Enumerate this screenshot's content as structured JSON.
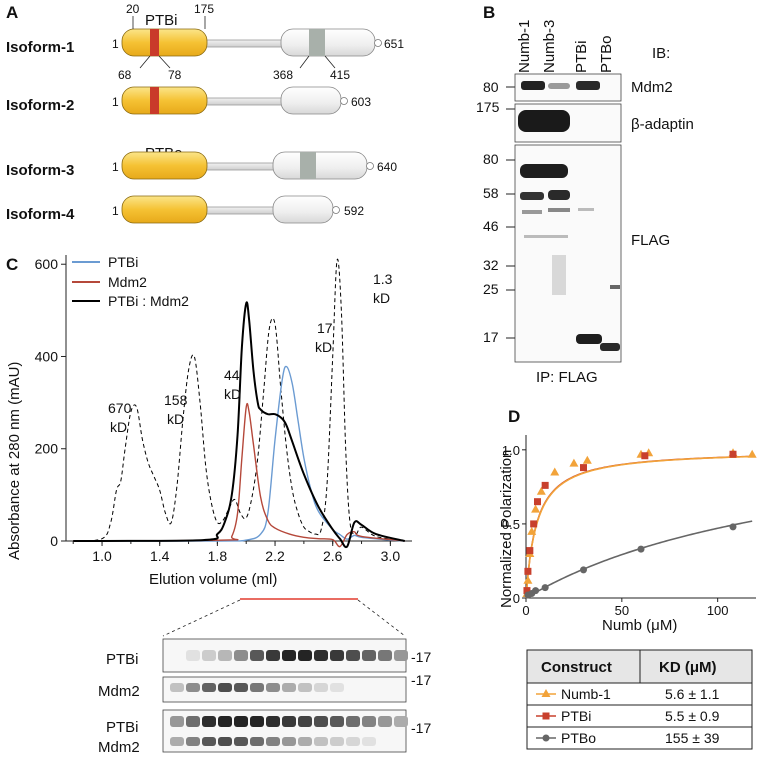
{
  "panels": {
    "a": "A",
    "b": "B",
    "c": "C",
    "d": "D"
  },
  "panel_a": {
    "domain_ptbi": "PTBi",
    "domain_ptbo": "PTBo",
    "isoforms": [
      {
        "name": "Isoform-1",
        "start": "1",
        "end": "651"
      },
      {
        "name": "Isoform-2",
        "start": "1",
        "end": "603"
      },
      {
        "name": "Isoform-3",
        "start": "1",
        "end": "640"
      },
      {
        "name": "Isoform-4",
        "start": "1",
        "end": "592"
      }
    ],
    "positions": {
      "p20": "20",
      "p175": "175",
      "p68": "68",
      "p78": "78",
      "p368": "368",
      "p415": "415"
    }
  },
  "panel_b": {
    "lanes": [
      "Numb-1",
      "Numb-3",
      "PTBi",
      "PTBo"
    ],
    "ib_label": "IB:",
    "blots": [
      {
        "label": "Mdm2",
        "markers": [
          "80"
        ]
      },
      {
        "label": "β-adaptin",
        "markers": [
          "175"
        ]
      },
      {
        "label": "FLAG",
        "markers": [
          "80",
          "58",
          "46",
          "32",
          "25",
          "17"
        ]
      }
    ],
    "ip_label": "IP: FLAG"
  },
  "chart_data": [
    {
      "type": "line",
      "xlabel": "Elution volume (ml)",
      "ylabel": "Absorbance at 280 nm (mAU)",
      "xlim": [
        0.75,
        3.15
      ],
      "ylim": [
        0,
        620
      ],
      "xticks": [
        "1.0",
        "1.4",
        "1.8",
        "2.2",
        "2.6",
        "3.0"
      ],
      "yticks": [
        "0",
        "200",
        "400",
        "600"
      ],
      "legend": [
        "PTBi",
        "Mdm2",
        "PTBi : Mdm2"
      ],
      "legend_position": "top-left",
      "series": [
        {
          "name": "PTBi",
          "color": "#6b9bd2",
          "x": [
            0.8,
            1.8,
            2.0,
            2.1,
            2.15,
            2.2,
            2.25,
            2.28,
            2.32,
            2.36,
            2.4,
            2.45,
            2.5,
            2.6,
            2.65,
            2.7,
            2.75,
            2.8,
            3.0,
            3.1
          ],
          "y": [
            0,
            0,
            2,
            15,
            60,
            220,
            350,
            378,
            340,
            260,
            180,
            110,
            65,
            25,
            14,
            4,
            12,
            8,
            2,
            0
          ]
        },
        {
          "name": "Mdm2",
          "color": "#b5483a",
          "x": [
            0.8,
            1.85,
            1.9,
            1.94,
            1.97,
            2.0,
            2.02,
            2.05,
            2.1,
            2.15,
            2.2,
            2.3,
            2.4,
            2.5,
            2.6,
            2.65,
            2.7,
            2.75,
            2.8,
            3.1
          ],
          "y": [
            0,
            2,
            10,
            60,
            180,
            290,
            280,
            210,
            95,
            45,
            28,
            15,
            8,
            5,
            3,
            -12,
            14,
            20,
            10,
            0
          ]
        },
        {
          "name": "PTBi : Mdm2",
          "color": "#000000",
          "x": [
            0.8,
            1.7,
            1.8,
            1.85,
            1.9,
            1.94,
            1.97,
            2.0,
            2.02,
            2.05,
            2.08,
            2.1,
            2.15,
            2.2,
            2.25,
            2.28,
            2.32,
            2.4,
            2.5,
            2.6,
            2.65,
            2.7,
            2.75,
            2.8,
            2.9,
            3.1
          ],
          "y": [
            0,
            2,
            15,
            40,
            100,
            230,
            420,
            515,
            480,
            370,
            300,
            285,
            275,
            275,
            265,
            250,
            215,
            145,
            75,
            25,
            5,
            -12,
            40,
            35,
            15,
            0
          ]
        },
        {
          "name": "",
          "color": "#000000",
          "dashed": true,
          "x": [
            0.8,
            1.0,
            1.06,
            1.1,
            1.13,
            1.16,
            1.2,
            1.24,
            1.28,
            1.32,
            1.36,
            1.4,
            1.44,
            1.48,
            1.52,
            1.56,
            1.6,
            1.64,
            1.68,
            1.72,
            1.76,
            1.8,
            1.84,
            1.88,
            1.92,
            1.96,
            2.0,
            2.04,
            2.08,
            2.12,
            2.16,
            2.2,
            2.24,
            2.28,
            2.32,
            2.36,
            2.4,
            2.44,
            2.48,
            2.52,
            2.56,
            2.6,
            2.63,
            2.66,
            2.69,
            2.72,
            2.76,
            2.8,
            2.9,
            3.1
          ],
          "y": [
            0,
            5,
            40,
            110,
            130,
            200,
            280,
            290,
            220,
            170,
            140,
            110,
            60,
            40,
            120,
            260,
            370,
            400,
            300,
            160,
            80,
            40,
            45,
            70,
            90,
            60,
            50,
            95,
            180,
            320,
            460,
            470,
            330,
            200,
            110,
            60,
            30,
            20,
            15,
            25,
            120,
            400,
            608,
            500,
            200,
            40,
            15,
            30,
            10,
            0
          ]
        }
      ],
      "annotations": [
        {
          "line1": "670",
          "line2": "kD"
        },
        {
          "line1": "158",
          "line2": "kD"
        },
        {
          "line1": "44",
          "line2": "kD"
        },
        {
          "line1": "17",
          "line2": "kD"
        },
        {
          "line1": "1.3",
          "line2": "kD"
        }
      ],
      "gel_labels": [
        "PTBi",
        "Mdm2",
        "PTBi",
        "Mdm2"
      ],
      "gel_marker": "-17"
    },
    {
      "type": "scatter",
      "xlabel": "Numb (μM)",
      "ylabel": "Normalized Polarization",
      "xlim": [
        0,
        120
      ],
      "ylim": [
        0,
        1.1
      ],
      "xticks": [
        "0",
        "50",
        "100"
      ],
      "yticks": [
        "0",
        "0.5",
        "1.0"
      ],
      "series": [
        {
          "name": "Numb-1",
          "color": "#f2a33a",
          "marker": "triangle",
          "x": [
            0.5,
            1,
            2,
            3,
            5,
            8,
            15,
            25,
            32,
            60,
            64,
            108,
            118
          ],
          "y": [
            0.03,
            0.12,
            0.3,
            0.45,
            0.6,
            0.72,
            0.85,
            0.91,
            0.93,
            0.97,
            0.98,
            0.98,
            0.97
          ]
        },
        {
          "name": "PTBi",
          "color": "#c8402d",
          "marker": "square",
          "x": [
            0.5,
            1,
            2,
            4,
            6,
            10,
            30,
            62,
            108
          ],
          "y": [
            0.05,
            0.18,
            0.32,
            0.5,
            0.65,
            0.76,
            0.88,
            0.96,
            0.97
          ]
        },
        {
          "name": "PTBo",
          "color": "#666666",
          "marker": "circle",
          "x": [
            1,
            3,
            5,
            10,
            30,
            60,
            108
          ],
          "y": [
            0.02,
            0.03,
            0.05,
            0.07,
            0.19,
            0.33,
            0.48
          ]
        }
      ],
      "table": {
        "headers": [
          "Construct",
          "KD (μM)"
        ],
        "rows": [
          {
            "construct": "Numb-1",
            "kd": "5.6 ± 1.1"
          },
          {
            "construct": "PTBi",
            "kd": "5.5 ± 0.9"
          },
          {
            "construct": "PTBo",
            "kd": "155 ± 39"
          }
        ]
      }
    }
  ]
}
